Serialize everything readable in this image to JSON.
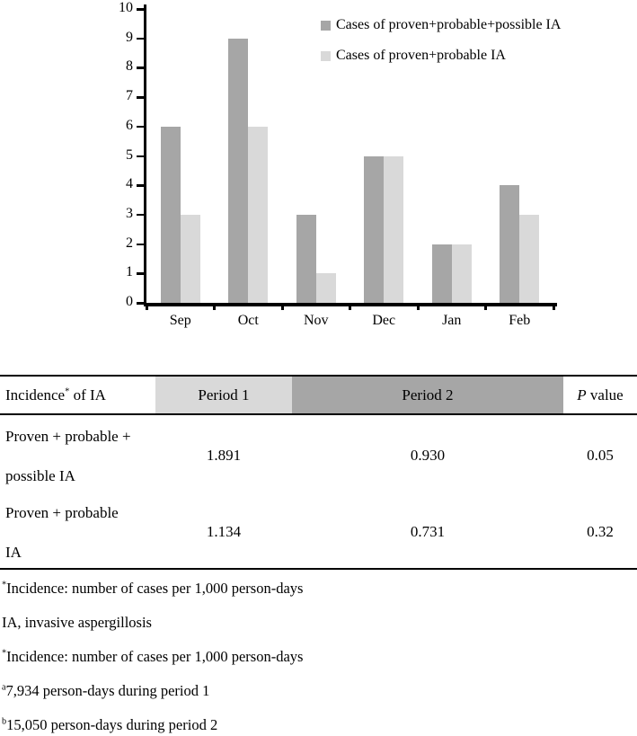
{
  "chart_data": {
    "type": "bar",
    "title": "",
    "xlabel": "",
    "ylabel": "",
    "categories": [
      "Sep",
      "Oct",
      "Nov",
      "Dec",
      "Jan",
      "Feb"
    ],
    "series": [
      {
        "name": "Cases of proven+probable+possible IA",
        "color": "#a6a6a6",
        "values": [
          6,
          9,
          3,
          5,
          2,
          4
        ]
      },
      {
        "name": "Cases of proven+probable IA",
        "color": "#d9d9d9",
        "values": [
          3,
          6,
          1,
          5,
          2,
          3
        ]
      }
    ],
    "ylim": [
      0,
      10
    ],
    "ytick_step": 1,
    "grid": false,
    "legend_position": "top-right"
  },
  "table": {
    "header": {
      "incidence_prefix": "Incidence",
      "incidence_sup": "*",
      "incidence_suffix": " of IA",
      "period1": "Period 1",
      "period1_bg": "#d9d9d9",
      "period2": "Period 2",
      "period2_bg": "#a6a6a6",
      "p_italic": "P",
      "p_suffix": " value"
    },
    "rows": [
      {
        "label_line1": "Proven + probable +",
        "label_line2": "possible IA",
        "period1": "1.891",
        "period2": "0.930",
        "p_value": "0.05"
      },
      {
        "label_line1": "Proven + probable",
        "label_line2": "IA",
        "period1": "1.134",
        "period2": "0.731",
        "p_value": "0.32"
      }
    ]
  },
  "footnotes": [
    {
      "sup": "*",
      "text": "Incidence: number of cases per 1,000 person-days"
    },
    {
      "sup": "",
      "text": "IA, invasive aspergillosis"
    },
    {
      "sup": "*",
      "text": "Incidence: number of cases per 1,000 person-days"
    },
    {
      "sup": "a",
      "text": "7,934 person-days during period 1"
    },
    {
      "sup": "b",
      "text": "15,050 person-days during period 2"
    }
  ]
}
